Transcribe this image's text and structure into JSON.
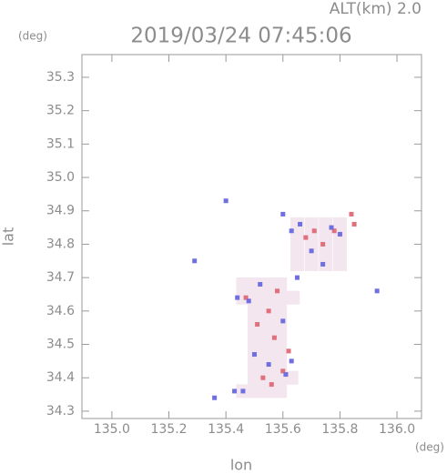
{
  "chart_data": {
    "type": "scatter",
    "title": "2019/03/24 07:45:06",
    "subtitle": "ALT(km) 2.0",
    "y_unit": "(deg)",
    "x_unit": "(deg)",
    "x_label": "lon",
    "y_label": "lat",
    "xlim": [
      134.895,
      136.086
    ],
    "ylim": [
      34.278,
      35.368
    ],
    "xticks": [
      {
        "value": 135,
        "label": "135.0"
      },
      135.2,
      135.4,
      135.6,
      135.8,
      {
        "value": 136,
        "label": "136.0"
      }
    ],
    "yticks": [
      34.3,
      34.4,
      34.5,
      34.6,
      34.7,
      34.8,
      34.9,
      {
        "value": 35,
        "label": "35.0"
      },
      35.1,
      35.2,
      35.3
    ],
    "series": [
      {
        "color": "#f3e6ee",
        "marker_size": 15,
        "x": [
          135.5,
          135.545,
          135.59,
          135.5,
          135.545,
          135.59,
          135.5,
          135.545,
          135.59,
          135.5,
          135.545,
          135.59,
          135.5,
          135.545,
          135.59,
          135.5,
          135.545,
          135.59,
          135.5,
          135.545,
          135.59,
          135.5,
          135.545,
          135.59,
          135.46,
          135.5,
          135.545,
          135.59,
          135.63,
          135.46,
          135.635,
          135.46,
          135.65,
          135.7,
          135.75,
          135.8,
          135.65,
          135.7,
          135.75,
          135.8,
          135.65,
          135.7,
          135.75,
          135.8,
          135.65,
          135.7,
          135.75,
          135.8
        ],
        "values": [
          34.4,
          34.4,
          34.4,
          34.44,
          34.44,
          34.44,
          34.48,
          34.48,
          34.48,
          34.52,
          34.52,
          34.52,
          34.56,
          34.56,
          34.56,
          34.6,
          34.6,
          34.6,
          34.64,
          34.64,
          34.64,
          34.68,
          34.68,
          34.68,
          34.36,
          34.36,
          34.36,
          34.36,
          34.4,
          34.64,
          34.64,
          34.68,
          34.74,
          34.74,
          34.74,
          34.74,
          34.78,
          34.78,
          34.78,
          34.78,
          34.82,
          34.82,
          34.82,
          34.82,
          34.86,
          34.86,
          34.86,
          34.86
        ]
      },
      {
        "color": "#e0707c",
        "marker_size": 5,
        "x": [
          135.55,
          135.53,
          135.56,
          135.6,
          135.51,
          135.57,
          135.71,
          135.68,
          135.74,
          135.84,
          135.85,
          135.78,
          135.58,
          135.47,
          135.62
        ],
        "values": [
          34.6,
          34.4,
          34.38,
          34.42,
          34.56,
          34.52,
          34.84,
          34.82,
          34.8,
          34.89,
          34.86,
          34.84,
          34.66,
          34.64,
          34.48
        ]
      },
      {
        "color": "#6f6fe0",
        "marker_size": 5,
        "x": [
          135.46,
          135.43,
          135.5,
          135.55,
          135.61,
          135.63,
          135.48,
          135.44,
          135.52,
          135.6,
          135.63,
          135.66,
          135.7,
          135.74,
          135.77,
          135.8,
          135.6,
          135.4,
          135.29,
          135.93,
          135.36,
          135.65
        ],
        "values": [
          34.36,
          34.36,
          34.47,
          34.44,
          34.41,
          34.45,
          34.63,
          34.64,
          34.68,
          34.57,
          34.84,
          34.86,
          34.78,
          34.74,
          34.85,
          34.83,
          34.89,
          34.93,
          34.75,
          34.66,
          34.34,
          34.7
        ]
      }
    ]
  }
}
